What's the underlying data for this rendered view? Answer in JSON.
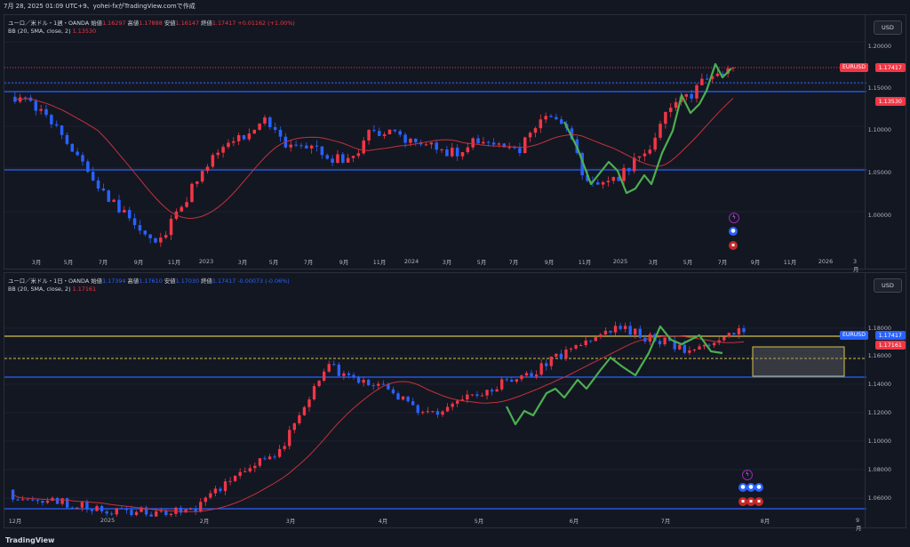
{
  "header": {
    "timestamp_line": "7月 28, 2025 01:09 UTC+9、yohei-fxがTradingView.comで作成"
  },
  "pane1": {
    "title": "ユーロ／米ドル・1週・OANDA",
    "open_label": "始値",
    "open": "1.16297",
    "high_label": "高値",
    "high": "1.17888",
    "low_label": "安値",
    "low": "1.16147",
    "close_label": "終値",
    "close": "1.17417",
    "change": "+0.01162 (+1.00%)",
    "bb_label": "BB (20, SMA, close, 2)",
    "bb_value": "1.13530",
    "currency": "USD",
    "y_labels": [
      "1.20000",
      "1.15000",
      "1.10000",
      "1.05000",
      "1.00000"
    ],
    "symbol_tag": "EURUSD",
    "last_price": "1.17417",
    "bb_tag": "1.13530",
    "x_labels": [
      "3月",
      "5月",
      "7月",
      "9月",
      "11月",
      "2023",
      "3月",
      "5月",
      "7月",
      "9月",
      "11月",
      "2024",
      "3月",
      "5月",
      "7月",
      "9月",
      "11月",
      "2025",
      "3月",
      "5月",
      "7月",
      "9月",
      "11月",
      "2026",
      "3月"
    ]
  },
  "pane2": {
    "title": "ユーロ／米ドル・1日・OANDA",
    "open_label": "始値",
    "open": "1.17394",
    "high_label": "高値",
    "high": "1.17610",
    "low_label": "安値",
    "low": "1.17030",
    "close_label": "終値",
    "close": "1.17417",
    "change": "-0.00073 (-0.06%)",
    "bb_label": "BB (20, SMA, close, 2)",
    "bb_value": "1.17161",
    "currency": "USD",
    "y_labels": [
      "1.18000",
      "1.16000",
      "1.14000",
      "1.12000",
      "1.10000",
      "1.08000",
      "1.06000"
    ],
    "symbol_tag": "EURUSD",
    "last_price": "1.17417",
    "bb_tag": "1.17161",
    "x_labels": [
      "12月",
      "2025",
      "2月",
      "3月",
      "4月",
      "5月",
      "6月",
      "7月",
      "8月",
      "9月"
    ]
  },
  "footer": {
    "brand": "TradingView"
  },
  "colors": {
    "up": "#f23645",
    "down": "#2962ff",
    "green": "#4caf50",
    "bb": "#c2323b",
    "hline": "#2962ff",
    "yline": "#d4c34a"
  }
}
